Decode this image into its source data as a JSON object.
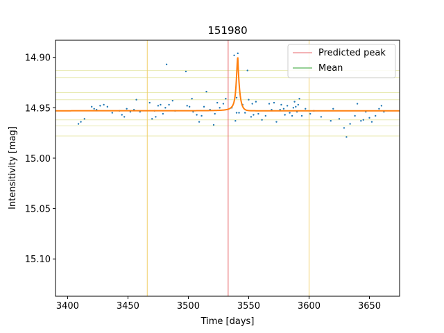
{
  "chart_data": {
    "type": "scatter",
    "title": "151980",
    "xlabel": "Time [days]",
    "ylabel": "Intensitivity [mag]",
    "xlim": [
      3390,
      3675
    ],
    "ylim": [
      15.137,
      14.883
    ],
    "y_inverted": true,
    "xticks": [
      3400,
      3450,
      3500,
      3550,
      3600,
      3650
    ],
    "yticks": [
      14.9,
      14.95,
      15.0,
      15.05,
      15.1
    ],
    "ytick_labels": [
      "14.90",
      "14.95",
      "15.00",
      "15.05",
      "15.10"
    ],
    "grid": false,
    "legend_position": "top-right",
    "legend": [
      {
        "label": "Predicted peak",
        "color": "#e8676b",
        "style": "line"
      },
      {
        "label": "Mean",
        "color": "#2ca02c",
        "style": "line"
      }
    ],
    "colors": {
      "points": "#1f77b4",
      "model_curve": "#ff7f0e",
      "predicted_peak": "#e8676b",
      "window_lines": "#f2cf6a",
      "band_lines": "#e8eab0"
    },
    "predicted_peak_x": 3533,
    "window_x": [
      3466,
      3600
    ],
    "band_y": [
      14.913,
      14.92,
      14.935,
      14.942,
      14.962,
      14.968,
      14.978
    ],
    "model_curve": {
      "baseline": 14.953,
      "peak_x": 3541,
      "peak_y": 14.9
    },
    "series": [
      {
        "x": [
          3409,
          3411,
          3414,
          3420,
          3422,
          3424,
          3427,
          3430,
          3433,
          3437,
          3443,
          3445,
          3447,
          3449,
          3452,
          3455,
          3457,
          3460,
          3468,
          3470,
          3472,
          3473,
          3475,
          3477,
          3479,
          3481,
          3482,
          3484,
          3487,
          3489,
          3498,
          3499,
          3501,
          3503,
          3504,
          3507,
          3509,
          3511,
          3513,
          3515,
          3518,
          3521,
          3522,
          3524,
          3526,
          3529,
          3531,
          3536,
          3538,
          3539,
          3540,
          3540,
          3541,
          3542,
          3545,
          3547,
          3549,
          3550,
          3552,
          3553,
          3554,
          3556,
          3558,
          3561,
          3564,
          3567,
          3569,
          3571,
          3573,
          3576,
          3577,
          3579,
          3580,
          3582,
          3584,
          3586,
          3587,
          3588,
          3589,
          3590,
          3591,
          3592,
          3594,
          3597,
          3601,
          3604,
          3610,
          3618,
          3620,
          3625,
          3629,
          3631,
          3634,
          3638,
          3640,
          3643,
          3645,
          3647,
          3650,
          3652,
          3655,
          3658,
          3660,
          3662
        ],
        "y": [
          14.966,
          14.964,
          14.961,
          14.949,
          14.951,
          14.952,
          14.948,
          14.947,
          14.949,
          14.955,
          14.953,
          14.957,
          14.959,
          14.951,
          14.954,
          14.952,
          14.942,
          14.954,
          14.945,
          14.961,
          14.953,
          14.959,
          14.948,
          14.947,
          14.956,
          14.95,
          14.907,
          14.947,
          14.943,
          14.953,
          14.914,
          14.948,
          14.949,
          14.941,
          14.954,
          14.957,
          14.964,
          14.958,
          14.949,
          14.934,
          14.952,
          14.967,
          14.956,
          14.945,
          14.95,
          14.946,
          14.941,
          14.95,
          14.898,
          14.963,
          14.955,
          14.94,
          14.896,
          14.955,
          14.947,
          14.955,
          14.913,
          14.942,
          14.959,
          14.946,
          14.957,
          14.944,
          14.956,
          14.962,
          14.958,
          14.946,
          14.952,
          14.945,
          14.964,
          14.952,
          14.947,
          14.951,
          14.957,
          14.948,
          14.955,
          14.958,
          14.95,
          14.944,
          14.949,
          14.954,
          14.947,
          14.941,
          14.958,
          14.951,
          14.956,
          14.953,
          14.959,
          14.963,
          14.951,
          14.961,
          14.97,
          14.979,
          14.966,
          14.958,
          14.946,
          14.963,
          14.962,
          14.954,
          14.96,
          14.964,
          14.958,
          14.951,
          14.948,
          14.954
        ]
      }
    ]
  }
}
